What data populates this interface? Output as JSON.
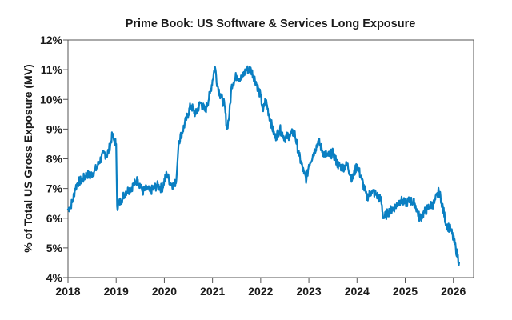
{
  "chart_data": {
    "type": "line",
    "title": "Prime Book: US Software & Services Long Exposure",
    "xlabel": "",
    "ylabel": "% of Total US Gross Exposure (MV)",
    "xlim": [
      2018,
      2026.42
    ],
    "ylim": [
      4,
      12
    ],
    "x_ticks": [
      2018,
      2019,
      2020,
      2021,
      2022,
      2023,
      2024,
      2025,
      2026
    ],
    "x_tick_labels": [
      "2018",
      "2019",
      "2020",
      "2021",
      "2022",
      "2023",
      "2024",
      "2025",
      "2026"
    ],
    "y_ticks": [
      4,
      5,
      6,
      7,
      8,
      9,
      10,
      11,
      12
    ],
    "y_tick_labels": [
      "4%",
      "5%",
      "6%",
      "7%",
      "8%",
      "9%",
      "10%",
      "11%",
      "12%"
    ],
    "grid": false,
    "legend": "none",
    "series": [
      {
        "name": "US Software & Services Long Exposure",
        "color": "#0a7fc2",
        "x": [
          2018.0,
          2018.05,
          2018.1,
          2018.15,
          2018.2,
          2018.3,
          2018.4,
          2018.45,
          2018.55,
          2018.6,
          2018.65,
          2018.75,
          2018.8,
          2018.85,
          2018.92,
          2018.96,
          2019.0,
          2019.02,
          2019.1,
          2019.2,
          2019.3,
          2019.35,
          2019.45,
          2019.55,
          2019.65,
          2019.7,
          2019.85,
          2019.95,
          2020.05,
          2020.12,
          2020.2,
          2020.25,
          2020.3,
          2020.35,
          2020.45,
          2020.55,
          2020.65,
          2020.75,
          2020.85,
          2020.95,
          2021.05,
          2021.1,
          2021.15,
          2021.25,
          2021.3,
          2021.35,
          2021.4,
          2021.5,
          2021.6,
          2021.7,
          2021.8,
          2021.9,
          2022.0,
          2022.05,
          2022.1,
          2022.2,
          2022.3,
          2022.4,
          2022.5,
          2022.6,
          2022.7,
          2022.8,
          2022.9,
          2022.95,
          2023.0,
          2023.1,
          2023.2,
          2023.3,
          2023.4,
          2023.5,
          2023.6,
          2023.7,
          2023.8,
          2023.9,
          2024.0,
          2024.1,
          2024.2,
          2024.3,
          2024.4,
          2024.5,
          2024.55,
          2024.65,
          2024.8,
          2024.9,
          2025.0,
          2025.1,
          2025.2,
          2025.3,
          2025.4,
          2025.5,
          2025.6,
          2025.7,
          2025.75,
          2025.85,
          2025.95,
          2026.05,
          2026.12
        ],
        "y": [
          6.3,
          6.4,
          6.6,
          7.0,
          7.2,
          7.3,
          7.5,
          7.4,
          7.6,
          7.7,
          7.9,
          8.2,
          8.1,
          8.3,
          8.8,
          8.6,
          8.5,
          6.4,
          6.6,
          6.9,
          7.0,
          7.1,
          7.3,
          6.9,
          7.0,
          6.9,
          7.1,
          7.0,
          7.5,
          7.2,
          7.1,
          7.3,
          8.6,
          8.8,
          9.3,
          9.8,
          9.5,
          9.9,
          9.6,
          10.2,
          11.1,
          10.5,
          10.2,
          9.8,
          9.0,
          9.5,
          10.5,
          10.8,
          10.7,
          11.0,
          11.0,
          10.6,
          10.1,
          9.6,
          10.0,
          9.3,
          8.7,
          9.0,
          8.7,
          8.8,
          8.9,
          8.1,
          7.5,
          7.3,
          7.8,
          8.2,
          8.6,
          8.2,
          8.1,
          8.2,
          7.8,
          7.7,
          7.8,
          7.3,
          7.8,
          7.3,
          6.7,
          6.9,
          6.8,
          6.6,
          6.0,
          6.2,
          6.4,
          6.6,
          6.5,
          6.6,
          6.5,
          6.0,
          6.2,
          6.4,
          6.5,
          6.9,
          6.6,
          5.8,
          5.6,
          5.0,
          4.5
        ]
      }
    ]
  }
}
